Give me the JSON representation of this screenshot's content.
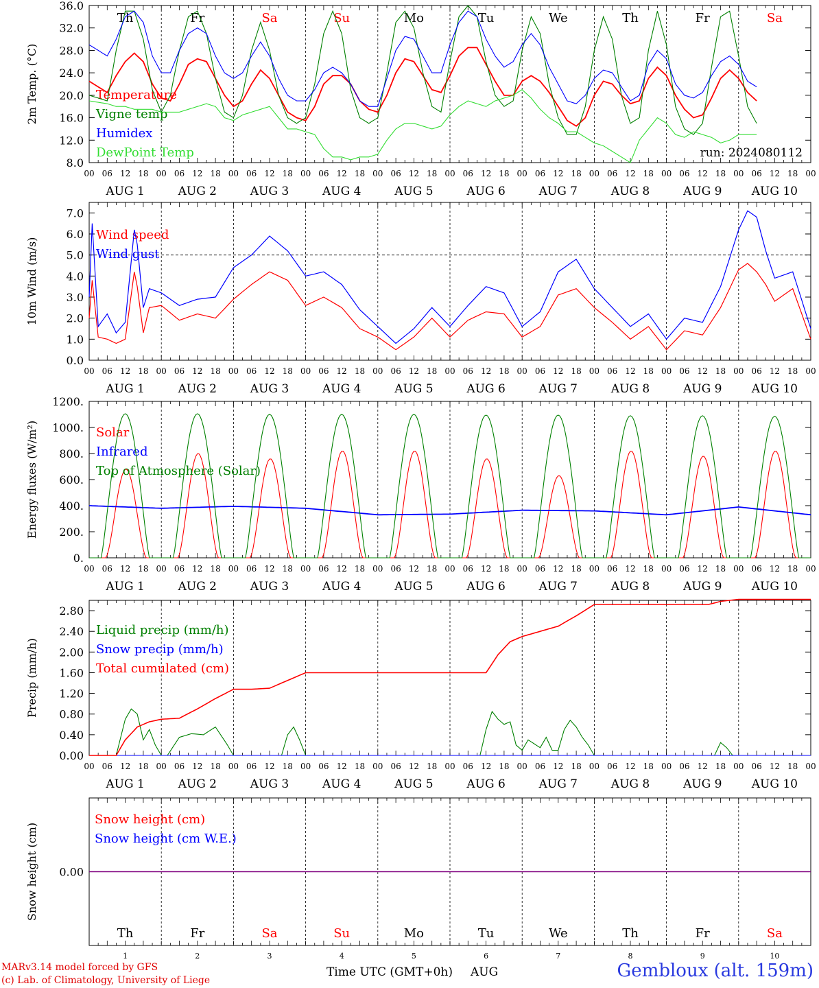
{
  "site": "Gembloux (alt. 159m)",
  "credits": [
    "MARv3.14 model forced by GFS",
    "(c) Lab. of Climatology, University of Liege"
  ],
  "time_axis_label": "Time UTC (GMT+0h)",
  "month_label": "AUG",
  "hour_ticks": [
    "00",
    "06",
    "12",
    "18"
  ],
  "days": [
    {
      "abbr": "Th",
      "date": "AUG  1",
      "num": "1",
      "weekend": false
    },
    {
      "abbr": "Fr",
      "date": "AUG  2",
      "num": "2",
      "weekend": false
    },
    {
      "abbr": "Sa",
      "date": "AUG  3",
      "num": "3",
      "weekend": true
    },
    {
      "abbr": "Su",
      "date": "AUG  4",
      "num": "4",
      "weekend": true
    },
    {
      "abbr": "Mo",
      "date": "AUG  5",
      "num": "5",
      "weekend": false
    },
    {
      "abbr": "Tu",
      "date": "AUG  6",
      "num": "6",
      "weekend": false
    },
    {
      "abbr": "We",
      "date": "AUG  7",
      "num": "7",
      "weekend": false
    },
    {
      "abbr": "Th",
      "date": "AUG  8",
      "num": "8",
      "weekend": false
    },
    {
      "abbr": "Fr",
      "date": "AUG  9",
      "num": "9",
      "weekend": false
    },
    {
      "abbr": "Sa",
      "date": "AUG 10",
      "num": "10",
      "weekend": true
    }
  ],
  "colors": {
    "red": "#ff0000",
    "blue": "#0000ff",
    "green": "#008000",
    "lightgreen": "#33dd33",
    "purple": "#800080",
    "weekend": "#ff0000",
    "weekday": "#000000"
  },
  "chart_data": [
    {
      "type": "line",
      "ylabel": "2m Temp. (°C)",
      "ylim": [
        8,
        36
      ],
      "yticks": [
        "8.0",
        "12.0",
        "16.0",
        "20.0",
        "24.0",
        "28.0",
        "32.0",
        "36.0"
      ],
      "annotation": "run: 2024080112",
      "x_hours": [
        0,
        6,
        9,
        12,
        15,
        18,
        21,
        24,
        27,
        30,
        33,
        36,
        39,
        42,
        45,
        48,
        51,
        54,
        57,
        60,
        63,
        66,
        69,
        72,
        75,
        78,
        81,
        84,
        87,
        90,
        93,
        96,
        99,
        102,
        105,
        108,
        111,
        114,
        117,
        120,
        123,
        126,
        129,
        132,
        135,
        138,
        141,
        144,
        147,
        150,
        153,
        156,
        159,
        162,
        165,
        168,
        171,
        174,
        177,
        180,
        183,
        186,
        189,
        192,
        195,
        198,
        201,
        204,
        207,
        210,
        213,
        216,
        219,
        222,
        225,
        228,
        231,
        234,
        237,
        240
      ],
      "series": [
        {
          "name": "Temperature",
          "color": "#ff0000",
          "values": [
            22.5,
            20.5,
            23.5,
            26.0,
            27.5,
            26.0,
            22.0,
            19.5,
            19.0,
            22.0,
            25.5,
            26.5,
            26.0,
            23.0,
            20.0,
            18.0,
            19.0,
            22.0,
            24.5,
            23.0,
            20.0,
            17.0,
            16.0,
            15.5,
            18.0,
            22.0,
            23.5,
            23.5,
            22.0,
            19.0,
            17.5,
            17.0,
            20.0,
            24.0,
            26.5,
            26.0,
            23.5,
            21.0,
            20.5,
            23.5,
            27.0,
            28.5,
            28.5,
            25.5,
            22.5,
            20.0,
            20.0,
            22.5,
            23.5,
            22.5,
            20.5,
            18.0,
            15.5,
            14.5,
            16.0,
            20.0,
            22.5,
            22.0,
            20.0,
            18.5,
            19.0,
            23.0,
            25.0,
            23.5,
            20.0,
            17.5,
            16.0,
            16.5,
            19.5,
            23.0,
            24.5,
            23.0,
            20.5,
            19.0
          ]
        },
        {
          "name": "Vigne temp",
          "color": "#008000",
          "values": [
            20.0,
            19.0,
            28.0,
            35.0,
            35.0,
            30.0,
            21.0,
            17.0,
            20.0,
            28.0,
            34.0,
            35.0,
            31.0,
            23.0,
            17.0,
            16.0,
            20.0,
            28.0,
            33.0,
            28.0,
            20.0,
            16.0,
            15.0,
            16.0,
            22.0,
            31.0,
            35.0,
            31.0,
            21.0,
            16.0,
            15.0,
            16.0,
            24.0,
            33.0,
            35.0,
            32.0,
            24.0,
            18.0,
            17.0,
            26.0,
            34.0,
            36.0,
            34.0,
            26.0,
            20.0,
            18.0,
            19.0,
            28.0,
            34.0,
            31.0,
            22.0,
            16.0,
            13.0,
            13.0,
            18.0,
            28.0,
            34.0,
            30.0,
            20.0,
            15.0,
            16.0,
            28.0,
            35.0,
            29.0,
            18.0,
            14.0,
            13.0,
            15.0,
            25.0,
            34.0,
            35.0,
            27.0,
            18.0,
            15.0
          ]
        },
        {
          "name": "Humidex",
          "color": "#0000ff",
          "values": [
            29.0,
            27.0,
            30.0,
            34.0,
            35.0,
            33.0,
            27.0,
            24.0,
            24.0,
            28.0,
            31.0,
            32.0,
            31.0,
            27.0,
            24.0,
            23.0,
            24.0,
            27.0,
            29.5,
            27.0,
            23.0,
            20.0,
            19.0,
            19.0,
            21.0,
            24.0,
            25.0,
            24.0,
            22.0,
            19.0,
            18.0,
            18.0,
            23.0,
            28.0,
            30.5,
            30.0,
            27.0,
            24.0,
            24.0,
            29.0,
            33.0,
            35.0,
            34.0,
            30.0,
            27.0,
            25.0,
            26.0,
            29.0,
            31.0,
            29.0,
            25.0,
            22.0,
            19.0,
            18.5,
            20.0,
            23.0,
            24.5,
            24.0,
            21.5,
            19.0,
            20.0,
            25.5,
            28.0,
            26.5,
            22.0,
            20.0,
            19.5,
            20.5,
            23.5,
            26.0,
            27.0,
            25.5,
            22.5,
            21.5
          ]
        },
        {
          "name": "DewPoint Temp",
          "color": "#33dd33",
          "values": [
            19.0,
            18.5,
            18.0,
            18.0,
            17.5,
            17.5,
            17.5,
            17.0,
            17.0,
            17.0,
            17.5,
            18.0,
            18.5,
            18.0,
            16.0,
            15.5,
            16.5,
            17.0,
            17.5,
            18.0,
            16.0,
            14.0,
            14.0,
            13.5,
            13.0,
            10.5,
            9.0,
            9.0,
            8.5,
            9.0,
            9.0,
            9.5,
            12.0,
            14.0,
            15.0,
            15.0,
            14.5,
            14.0,
            14.5,
            16.5,
            18.0,
            19.0,
            18.5,
            18.0,
            19.0,
            19.5,
            20.0,
            21.0,
            19.5,
            17.5,
            16.0,
            15.0,
            13.5,
            13.5,
            12.5,
            11.5,
            11.0,
            10.0,
            9.0,
            8.0,
            12.0,
            14.0,
            16.0,
            15.0,
            13.0,
            12.5,
            13.5,
            13.0,
            12.5,
            11.5,
            12.0,
            13.0,
            13.0,
            13.0
          ]
        }
      ]
    },
    {
      "type": "line",
      "ylabel": "10m Wind (m/s)",
      "ylim": [
        0,
        7.5
      ],
      "yticks": [
        "0.0",
        "1.0",
        "2.0",
        "3.0",
        "4.0",
        "5.0",
        "6.0",
        "7.0"
      ],
      "reference_line": 5.0,
      "x_hours": [
        0,
        1,
        3,
        6,
        9,
        12,
        15,
        16,
        18,
        20,
        24,
        30,
        36,
        42,
        48,
        54,
        60,
        66,
        72,
        78,
        84,
        90,
        96,
        102,
        108,
        114,
        120,
        126,
        132,
        138,
        144,
        150,
        156,
        162,
        168,
        174,
        180,
        186,
        192,
        198,
        204,
        210,
        216,
        219,
        222,
        225,
        228,
        234,
        240
      ],
      "series": [
        {
          "name": "Wind speed",
          "color": "#ff0000",
          "values": [
            2.0,
            3.8,
            1.1,
            1.0,
            0.8,
            1.0,
            4.2,
            3.5,
            1.3,
            2.5,
            2.6,
            1.9,
            2.2,
            2.0,
            2.9,
            3.6,
            4.2,
            3.8,
            2.6,
            3.0,
            2.5,
            1.5,
            1.1,
            0.5,
            1.1,
            2.0,
            1.1,
            1.9,
            2.3,
            2.2,
            1.1,
            1.6,
            3.1,
            3.4,
            2.5,
            1.8,
            1.0,
            1.6,
            0.5,
            1.4,
            1.2,
            2.5,
            4.3,
            4.6,
            4.2,
            3.6,
            2.8,
            3.4,
            1.0
          ]
        },
        {
          "name": "Wind gust",
          "color": "#0000ff",
          "values": [
            3.0,
            6.5,
            1.6,
            2.2,
            1.3,
            1.8,
            6.2,
            5.5,
            2.5,
            3.4,
            3.2,
            2.6,
            2.9,
            3.0,
            4.4,
            5.0,
            5.9,
            5.2,
            4.0,
            4.2,
            3.6,
            2.4,
            1.6,
            0.8,
            1.5,
            2.5,
            1.6,
            2.6,
            3.5,
            3.2,
            1.6,
            2.3,
            4.2,
            4.8,
            3.4,
            2.5,
            1.6,
            2.2,
            1.0,
            2.0,
            1.8,
            3.5,
            6.2,
            7.1,
            6.8,
            5.2,
            3.9,
            4.2,
            1.5
          ]
        }
      ]
    },
    {
      "type": "line",
      "ylabel": "Energy fluxes (W/m²)",
      "ylim": [
        0,
        1200
      ],
      "yticks": [
        "0.",
        "200.",
        "400.",
        "600.",
        "800.",
        "1000.",
        "1200."
      ],
      "series": [
        {
          "name": "Solar",
          "color": "#ff0000",
          "day_peaks": [
            680,
            800,
            760,
            820,
            820,
            760,
            630,
            820,
            780,
            820
          ]
        },
        {
          "name": "Infrared",
          "color": "#0000ff",
          "x_hours": [
            0,
            24,
            48,
            72,
            96,
            120,
            144,
            168,
            192,
            216,
            240
          ],
          "values": [
            400,
            380,
            395,
            380,
            330,
            335,
            365,
            360,
            330,
            390,
            330
          ]
        },
        {
          "name": "Top of Atmosphere (Solar)",
          "color": "#008000",
          "day_peaks": [
            1105,
            1105,
            1100,
            1100,
            1100,
            1095,
            1095,
            1090,
            1090,
            1085
          ]
        }
      ]
    },
    {
      "type": "line",
      "ylabel": "Precip (mm/h)",
      "ylim": [
        0,
        3.0
      ],
      "yticks": [
        "0.00",
        "0.40",
        "0.80",
        "1.20",
        "1.60",
        "2.00",
        "2.40",
        "2.80"
      ],
      "series": [
        {
          "name": "Liquid precip (mm/h)",
          "color": "#008000",
          "x_hours": [
            0,
            9,
            12,
            14,
            16,
            18,
            20,
            22,
            24,
            26,
            30,
            34,
            38,
            42,
            46,
            48,
            64,
            66,
            68,
            70,
            72,
            130,
            132,
            134,
            136,
            138,
            140,
            142,
            144,
            146,
            150,
            152,
            154,
            156,
            158,
            160,
            162,
            164,
            166,
            168,
            208,
            210,
            212,
            214,
            240
          ],
          "values": [
            0,
            0,
            0.7,
            0.9,
            0.8,
            0.3,
            0.5,
            0.2,
            0,
            0,
            0.35,
            0.42,
            0.4,
            0.55,
            0.2,
            0,
            0,
            0.4,
            0.55,
            0.3,
            0,
            0,
            0.5,
            0.85,
            0.7,
            0.6,
            0.65,
            0.2,
            0.1,
            0.3,
            0.15,
            0.35,
            0.1,
            0.1,
            0.5,
            0.68,
            0.55,
            0.35,
            0.2,
            0,
            0,
            0.25,
            0.15,
            0,
            0
          ]
        },
        {
          "name": "Snow precip (mm/h)",
          "color": "#0000ff",
          "x_hours": [
            0,
            240
          ],
          "values": [
            0,
            0
          ]
        },
        {
          "name": "Total cumulated (cm)",
          "color": "#ff0000",
          "x_hours": [
            0,
            9,
            12,
            16,
            20,
            24,
            30,
            36,
            42,
            48,
            54,
            60,
            66,
            72,
            96,
            120,
            132,
            136,
            140,
            144,
            150,
            156,
            162,
            168,
            192,
            206,
            210,
            216,
            240
          ],
          "values": [
            0,
            0,
            0.3,
            0.55,
            0.65,
            0.7,
            0.72,
            0.9,
            1.1,
            1.28,
            1.28,
            1.3,
            1.45,
            1.6,
            1.6,
            1.6,
            1.6,
            1.95,
            2.2,
            2.3,
            2.4,
            2.5,
            2.7,
            2.92,
            2.92,
            2.92,
            2.98,
            3.02,
            3.02
          ]
        }
      ]
    },
    {
      "type": "line",
      "ylabel": "Snow height (cm)",
      "ylim": [
        -1,
        1
      ],
      "yticks": [
        "0.00"
      ],
      "series": [
        {
          "name": "Snow height (cm)",
          "color": "#ff0000",
          "x_hours": [
            0,
            240
          ],
          "values": [
            0,
            0
          ]
        },
        {
          "name": "Snow height (cm W.E.)",
          "color": "#0000ff",
          "x_hours": [
            0,
            240
          ],
          "values": [
            0,
            0
          ]
        }
      ]
    }
  ]
}
